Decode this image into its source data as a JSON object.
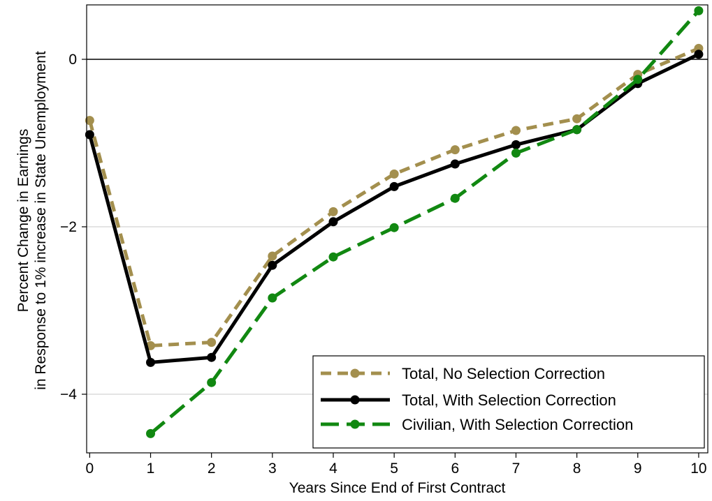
{
  "chart_data": {
    "type": "line",
    "title": "",
    "xlabel": "Years Since End of First Contract",
    "ylabel_lines": [
      "Percent Change in Earnings",
      "in Response to 1% increase in State Unemployment"
    ],
    "xlim": [
      -0.05,
      10.15
    ],
    "ylim": [
      -4.7,
      0.65
    ],
    "x_ticks": [
      0,
      1,
      2,
      3,
      4,
      5,
      6,
      7,
      8,
      9,
      10
    ],
    "x_tick_labels": [
      "0",
      "1",
      "2",
      "3",
      "4",
      "5",
      "6",
      "7",
      "8",
      "9",
      "10"
    ],
    "y_ticks": [
      0,
      -2,
      -4
    ],
    "y_tick_labels": [
      "0",
      "−2",
      "−4"
    ],
    "gridlines_y": [
      -2,
      -4
    ],
    "zero_line": true,
    "legend_position": "bottom-right",
    "series": [
      {
        "name": "Total, No Selection Correction",
        "color": "#a38f4e",
        "dash": "short-dash",
        "x": [
          0,
          1,
          2,
          3,
          4,
          5,
          6,
          7,
          8,
          9,
          10
        ],
        "y": [
          -0.73,
          -3.42,
          -3.38,
          -2.35,
          -1.82,
          -1.37,
          -1.08,
          -0.85,
          -0.71,
          -0.18,
          0.13
        ]
      },
      {
        "name": "Total, With Selection Correction",
        "color": "#000000",
        "dash": "solid",
        "x": [
          0,
          1,
          2,
          3,
          4,
          5,
          6,
          7,
          8,
          9,
          10
        ],
        "y": [
          -0.9,
          -3.62,
          -3.56,
          -2.46,
          -1.94,
          -1.52,
          -1.25,
          -1.02,
          -0.84,
          -0.29,
          0.06
        ]
      },
      {
        "name": "Civilian, With Selection Correction",
        "color": "#118811",
        "dash": "long-dash",
        "x": [
          1,
          2,
          3,
          4,
          5,
          6,
          7,
          8,
          9,
          10
        ],
        "y": [
          -4.47,
          -3.86,
          -2.85,
          -2.36,
          -2.01,
          -1.66,
          -1.12,
          -0.84,
          -0.24,
          0.58
        ]
      }
    ]
  }
}
